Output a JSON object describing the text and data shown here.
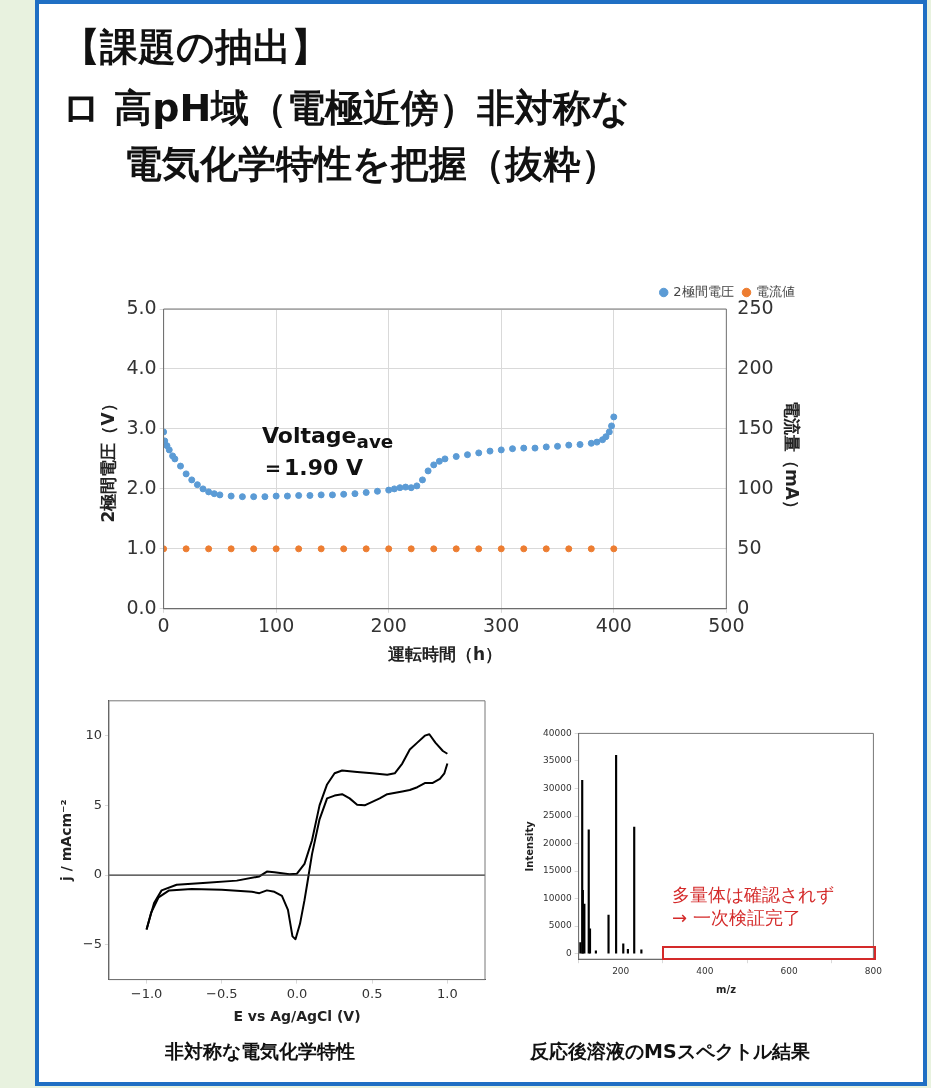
{
  "chart_data": [
    {
      "type": "scatter",
      "title": "【課題の抽出】",
      "subtitle": "ロ 高pH域（電極近傍）非対称な電気化学特性を把握（抜粋）",
      "xlabel": "運転時間（h）",
      "ylabel": "2極間電圧（V）",
      "y2label": "電流量（mA）",
      "marker": "circle",
      "grid": true,
      "legend": "top right",
      "xlim": [
        0,
        500
      ],
      "xticks": [
        0,
        100,
        200,
        300,
        400,
        500
      ],
      "ylim": [
        0,
        5
      ],
      "yticks": [
        {
          "value": 0,
          "label": "0.0"
        },
        {
          "value": 1,
          "label": "1.0"
        },
        {
          "value": 2,
          "label": "2.0"
        },
        {
          "value": 3,
          "label": "3.0"
        },
        {
          "value": 4,
          "label": "4.0"
        },
        {
          "value": 5,
          "label": "5.0"
        }
      ],
      "y2lim": [
        0,
        250
      ],
      "y2ticks": [
        0,
        50,
        100,
        150,
        200,
        250
      ],
      "annotations": [
        "Voltage$_{ave}$\n＝1.90 V"
      ],
      "series": [
        {
          "name": "2極間電圧",
          "color": "#5b9bd5",
          "x": [
            0,
            1,
            3,
            5,
            8,
            10,
            15,
            20,
            25,
            30,
            35,
            40,
            45,
            50,
            60,
            70,
            80,
            90,
            100,
            110,
            120,
            130,
            140,
            150,
            160,
            170,
            180,
            190,
            200,
            205,
            210,
            215,
            220,
            225,
            230,
            235,
            240,
            245,
            250,
            260,
            270,
            280,
            290,
            300,
            310,
            320,
            330,
            340,
            350,
            360,
            370,
            380,
            385,
            390,
            393,
            396,
            398,
            400
          ],
          "values": [
            2.95,
            2.8,
            2.72,
            2.65,
            2.55,
            2.5,
            2.38,
            2.25,
            2.15,
            2.07,
            2.0,
            1.95,
            1.92,
            1.9,
            1.88,
            1.87,
            1.87,
            1.87,
            1.88,
            1.88,
            1.89,
            1.89,
            1.9,
            1.9,
            1.91,
            1.92,
            1.94,
            1.96,
            1.98,
            2.0,
            2.02,
            2.03,
            2.02,
            2.05,
            2.15,
            2.3,
            2.4,
            2.46,
            2.5,
            2.54,
            2.57,
            2.6,
            2.63,
            2.65,
            2.67,
            2.68,
            2.68,
            2.7,
            2.71,
            2.73,
            2.74,
            2.76,
            2.78,
            2.82,
            2.87,
            2.95,
            3.05,
            3.2
          ]
        },
        {
          "name": "電流値",
          "color": "#ed7d31",
          "axis": "y2",
          "x": [
            0,
            20,
            40,
            60,
            80,
            100,
            120,
            140,
            160,
            180,
            200,
            220,
            240,
            260,
            280,
            300,
            320,
            340,
            360,
            380,
            400
          ],
          "values": [
            50,
            50,
            50,
            50,
            50,
            50,
            50,
            50,
            50,
            50,
            50,
            50,
            50,
            50,
            50,
            50,
            50,
            50,
            50,
            50,
            50
          ]
        }
      ]
    },
    {
      "type": "line",
      "xlabel": "E vs Ag/AgCl (V)",
      "ylabel": "j / mAcm⁻²",
      "marker": "none",
      "xlim": [
        -1.25,
        1.25
      ],
      "xticks": [
        {
          "value": -1,
          "label": "−1.0"
        },
        {
          "value": -0.5,
          "label": "−0.5"
        },
        {
          "value": 0,
          "label": "0.0"
        },
        {
          "value": 0.5,
          "label": "0.5"
        },
        {
          "value": 1,
          "label": "1.0"
        }
      ],
      "ylim": [
        -7.5,
        12.5
      ],
      "yticks": [
        {
          "value": -5,
          "label": "−5"
        },
        0,
        5,
        10
      ],
      "ref_lines": [
        {
          "axis": "y",
          "value": 0,
          "color": "#333333"
        }
      ],
      "annotations": [
        "非対称な電気化学特性"
      ],
      "series": [
        {
          "color": "#000000",
          "x": [
            -1,
            -0.95,
            -0.9,
            -0.8,
            -0.6,
            -0.4,
            -0.25,
            -0.2,
            -0.15,
            -0.05,
            0,
            0.05,
            0.1,
            0.15,
            0.2,
            0.25,
            0.3,
            0.4,
            0.5,
            0.6,
            0.65,
            0.7,
            0.75,
            0.8,
            0.85,
            0.88,
            0.92,
            0.97,
            1
          ],
          "values": [
            -3.9,
            -2,
            -1.1,
            -0.7,
            -0.55,
            -0.4,
            -0.1,
            0.25,
            0.2,
            0.05,
            0.1,
            0.8,
            2.5,
            5,
            6.5,
            7.3,
            7.5,
            7.4,
            7.3,
            7.2,
            7.3,
            8,
            9,
            9.5,
            10,
            10.1,
            9.5,
            8.9,
            8.7
          ]
        },
        {
          "color": "#000000",
          "x": [
            -1,
            -0.97,
            -0.92,
            -0.85,
            -0.7,
            -0.5,
            -0.3,
            -0.25,
            -0.2,
            -0.15,
            -0.1,
            -0.06,
            -0.03,
            -0.01,
            0.02,
            0.05,
            0.07,
            0.1,
            0.15,
            0.2,
            0.25,
            0.3,
            0.35,
            0.4,
            0.45,
            0.55,
            0.6,
            0.7,
            0.75,
            0.8,
            0.85,
            0.9,
            0.95,
            0.98,
            1
          ],
          "values": [
            -3.9,
            -2.7,
            -1.6,
            -1.1,
            -1,
            -1.05,
            -1.2,
            -1.3,
            -1.1,
            -1.2,
            -1.5,
            -2.5,
            -4.4,
            -4.6,
            -3.5,
            -1.8,
            -0.5,
            1.5,
            4,
            5.5,
            5.7,
            5.8,
            5.5,
            5.05,
            5,
            5.5,
            5.8,
            6,
            6.1,
            6.3,
            6.6,
            6.6,
            6.9,
            7.3,
            8
          ]
        }
      ]
    },
    {
      "type": "bar",
      "xlabel": "m/z",
      "ylabel": "Intensity",
      "xlim": [
        100,
        800
      ],
      "xticks": [
        200,
        400,
        600,
        800
      ],
      "ylim": [
        -1000,
        40000
      ],
      "yticks": [
        0,
        5000,
        10000,
        15000,
        20000,
        25000,
        30000,
        35000,
        40000
      ],
      "annotations": [
        "多量体は確認されず\n→ 一次検証完了",
        "反応後溶液のMSスペクトル結果"
      ],
      "series": [
        {
          "color": "#000000",
          "x": [
            104,
            108.5,
            110,
            113.6,
            124,
            127,
            141,
            171,
            189,
            206,
            217,
            232,
            249
          ],
          "values": [
            2000,
            31500,
            11500,
            9000,
            22500,
            4500,
            500,
            7000,
            36000,
            1800,
            800,
            23000,
            700
          ]
        }
      ]
    }
  ]
}
